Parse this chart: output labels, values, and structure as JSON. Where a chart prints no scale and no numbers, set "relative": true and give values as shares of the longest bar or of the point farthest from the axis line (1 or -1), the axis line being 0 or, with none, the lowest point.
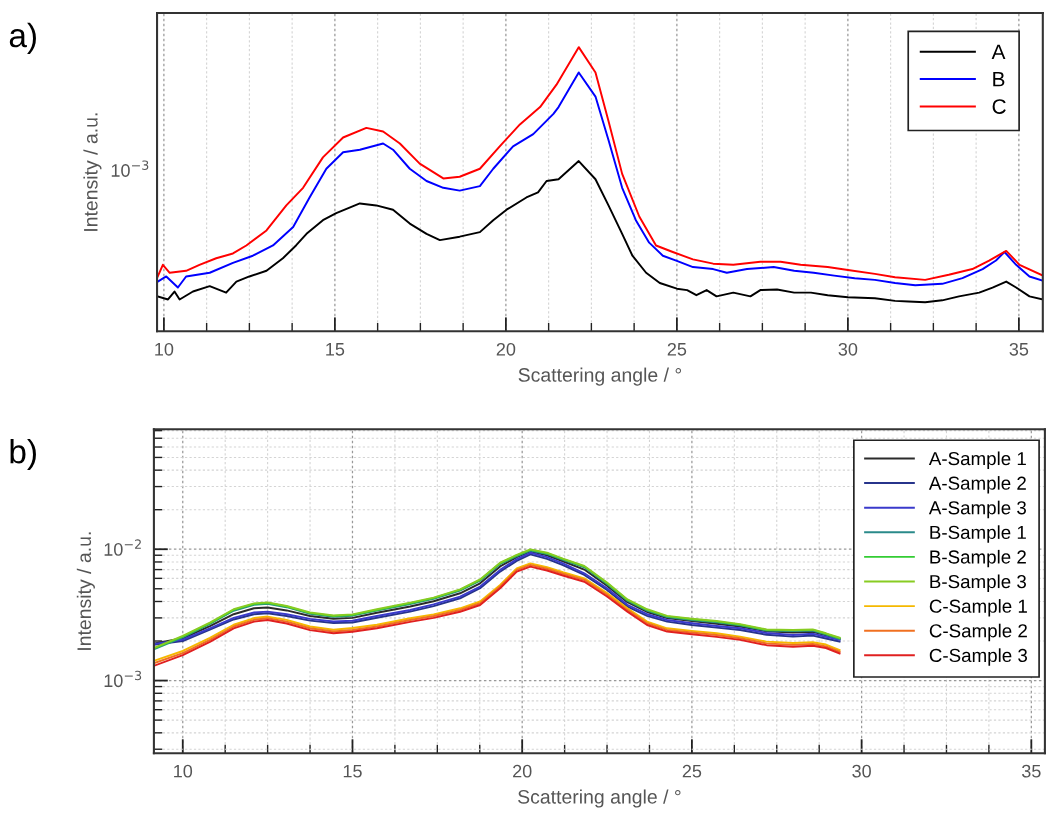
{
  "chart_data": [
    {
      "type": "line",
      "title": "a)",
      "xlabel": "Scattering angle / °",
      "ylabel": "Intensity / a.u.",
      "grid": "x",
      "legend": "top right",
      "line_style": "solid",
      "relative": true,
      "annotations": [
        "10$^{−3}$"
      ],
      "xlim": [
        9.8,
        35.7
      ],
      "xticks": [
        10,
        {
          "value": 11.25,
          "label": null
        },
        {
          "value": 12.5,
          "label": null
        },
        {
          "value": 13.75,
          "label": null
        },
        15,
        {
          "value": 16.25,
          "label": null
        },
        {
          "value": 17.5,
          "label": null
        },
        {
          "value": 18.75,
          "label": null
        },
        20,
        {
          "value": 21.25,
          "label": null
        },
        {
          "value": 22.5,
          "label": null
        },
        {
          "value": 23.75,
          "label": null
        },
        25,
        {
          "value": 26.25,
          "label": null
        },
        {
          "value": 27.5,
          "label": null
        },
        {
          "value": 28.75,
          "label": null
        },
        30,
        {
          "value": 31.25,
          "label": null
        },
        {
          "value": 32.5,
          "label": null
        },
        {
          "value": 33.75,
          "label": null
        },
        35
      ],
      "series": [
        {
          "name": "A",
          "color": "#000000",
          "x": [
            9.82,
            10.12,
            10.31,
            10.46,
            10.85,
            11.34,
            11.82,
            12.12,
            12.5,
            13.0,
            13.48,
            13.87,
            14.17,
            14.65,
            15.04,
            15.73,
            16.21,
            16.7,
            17.19,
            17.68,
            18.07,
            18.65,
            19.24,
            19.63,
            20.02,
            20.6,
            20.94,
            21.19,
            21.54,
            22.13,
            22.62,
            23.0,
            23.4,
            23.7,
            24.1,
            24.5,
            25.0,
            25.3,
            25.57,
            25.87,
            26.16,
            26.65,
            27.15,
            27.44,
            27.93,
            28.43,
            28.92,
            29.41,
            30.0,
            30.79,
            31.38,
            31.77,
            32.26,
            32.76,
            33.25,
            33.84,
            34.23,
            34.63,
            34.92,
            35.31,
            35.7
          ],
          "values": [
            0.123,
            0.112,
            0.14,
            0.112,
            0.14,
            0.159,
            0.136,
            0.175,
            0.193,
            0.213,
            0.257,
            0.303,
            0.343,
            0.391,
            0.416,
            0.45,
            0.443,
            0.428,
            0.379,
            0.343,
            0.321,
            0.333,
            0.349,
            0.391,
            0.428,
            0.471,
            0.489,
            0.529,
            0.535,
            0.599,
            0.535,
            0.443,
            0.343,
            0.266,
            0.206,
            0.17,
            0.15,
            0.145,
            0.127,
            0.145,
            0.123,
            0.136,
            0.123,
            0.145,
            0.147,
            0.136,
            0.136,
            0.127,
            0.12,
            0.116,
            0.107,
            0.105,
            0.102,
            0.109,
            0.123,
            0.136,
            0.154,
            0.175,
            0.154,
            0.123,
            0.112
          ]
        },
        {
          "name": "B",
          "color": "#0000ff",
          "x": [
            9.82,
            10.07,
            10.41,
            10.65,
            11.34,
            12.02,
            12.6,
            13.19,
            13.78,
            14.26,
            14.75,
            15.24,
            15.73,
            16.41,
            16.7,
            17.19,
            17.68,
            18.17,
            18.65,
            19.24,
            19.63,
            20.21,
            20.8,
            21.39,
            21.54,
            22.13,
            22.62,
            23.0,
            23.4,
            23.8,
            24.19,
            24.59,
            24.98,
            25.47,
            26.06,
            26.46,
            27.05,
            27.83,
            28.43,
            29.0,
            29.6,
            30.2,
            30.79,
            31.38,
            31.97,
            32.76,
            33.35,
            33.94,
            34.33,
            34.58,
            34.92,
            35.31,
            35.7
          ],
          "values": [
            0.175,
            0.193,
            0.154,
            0.193,
            0.206,
            0.241,
            0.266,
            0.302,
            0.367,
            0.471,
            0.572,
            0.63,
            0.639,
            0.661,
            0.639,
            0.572,
            0.529,
            0.505,
            0.495,
            0.511,
            0.572,
            0.651,
            0.694,
            0.765,
            0.789,
            0.911,
            0.826,
            0.673,
            0.505,
            0.391,
            0.312,
            0.266,
            0.249,
            0.226,
            0.219,
            0.206,
            0.219,
            0.226,
            0.213,
            0.206,
            0.196,
            0.187,
            0.181,
            0.17,
            0.162,
            0.167,
            0.187,
            0.219,
            0.249,
            0.279,
            0.234,
            0.193,
            0.178
          ]
        },
        {
          "name": "C",
          "color": "#ff0000",
          "x": [
            9.82,
            9.97,
            10.17,
            10.65,
            11.04,
            11.53,
            12.02,
            12.41,
            13.0,
            13.58,
            14.07,
            14.65,
            15.24,
            15.92,
            16.41,
            16.9,
            17.48,
            18.17,
            18.65,
            19.24,
            19.82,
            20.41,
            21.0,
            21.48,
            22.13,
            22.62,
            23.0,
            23.4,
            23.9,
            24.39,
            24.88,
            25.47,
            26.06,
            26.65,
            27.44,
            28.03,
            28.62,
            29.41,
            30.0,
            30.79,
            31.38,
            32.26,
            32.95,
            33.64,
            34.13,
            34.63,
            35.02,
            35.7
          ],
          "values": [
            0.193,
            0.234,
            0.206,
            0.213,
            0.234,
            0.257,
            0.274,
            0.302,
            0.355,
            0.443,
            0.505,
            0.612,
            0.682,
            0.716,
            0.703,
            0.661,
            0.59,
            0.538,
            0.544,
            0.572,
            0.651,
            0.728,
            0.789,
            0.868,
            1,
            0.911,
            0.74,
            0.554,
            0.404,
            0.302,
            0.279,
            0.253,
            0.238,
            0.234,
            0.245,
            0.245,
            0.234,
            0.226,
            0.216,
            0.202,
            0.19,
            0.181,
            0.199,
            0.219,
            0.249,
            0.283,
            0.234,
            0.196
          ]
        }
      ]
    },
    {
      "type": "line",
      "title": "b)",
      "xlabel": "Scattering angle / °",
      "ylabel": "Intensity / a.u.",
      "log": "y",
      "grid": true,
      "legend": "top right",
      "line_style": "solid",
      "xlim": [
        9.15,
        35.4
      ],
      "ylim": [
        0.00028,
        0.082
      ],
      "xticks": [
        10,
        {
          "value": 11.25,
          "label": null
        },
        {
          "value": 12.5,
          "label": null
        },
        {
          "value": 13.75,
          "label": null
        },
        15,
        {
          "value": 16.25,
          "label": null
        },
        {
          "value": 17.5,
          "label": null
        },
        {
          "value": 18.75,
          "label": null
        },
        20,
        {
          "value": 21.25,
          "label": null
        },
        {
          "value": 22.5,
          "label": null
        },
        {
          "value": 23.75,
          "label": null
        },
        25,
        {
          "value": 26.25,
          "label": null
        },
        {
          "value": 27.5,
          "label": null
        },
        {
          "value": 28.75,
          "label": null
        },
        30,
        {
          "value": 31.25,
          "label": null
        },
        {
          "value": 32.5,
          "label": null
        },
        {
          "value": 33.75,
          "label": null
        },
        35
      ],
      "yticks": [
        {
          "value": 0.0003,
          "label": null
        },
        {
          "value": 0.0004,
          "label": null
        },
        {
          "value": 0.0005,
          "label": null
        },
        {
          "value": 0.0006,
          "label": null
        },
        {
          "value": 0.0007,
          "label": null
        },
        {
          "value": 0.0008,
          "label": null
        },
        {
          "value": 0.0009,
          "label": null
        },
        {
          "value": 0.001,
          "label": "10$^{−3}$"
        },
        {
          "value": 0.002,
          "label": null
        },
        {
          "value": 0.003,
          "label": null
        },
        {
          "value": 0.004,
          "label": null
        },
        {
          "value": 0.005,
          "label": null
        },
        {
          "value": 0.006,
          "label": null
        },
        {
          "value": 0.007,
          "label": null
        },
        {
          "value": 0.008,
          "label": null
        },
        {
          "value": 0.009,
          "label": null
        },
        {
          "value": 0.01,
          "label": "10$^{−2}$"
        },
        {
          "value": 0.02,
          "label": null
        },
        {
          "value": 0.03,
          "label": null
        },
        {
          "value": 0.04,
          "label": null
        },
        {
          "value": 0.05,
          "label": null
        },
        {
          "value": 0.06,
          "label": null
        },
        {
          "value": 0.07,
          "label": null
        },
        {
          "value": 0.08,
          "label": null
        }
      ],
      "x": [
        9.17,
        10,
        10.8,
        11.5,
        12.1,
        12.5,
        13.06,
        13.75,
        14.44,
        15,
        15.72,
        16.7,
        17.39,
        18.17,
        18.76,
        19.35,
        19.84,
        20.24,
        20.73,
        21.2,
        21.83,
        22.5,
        23.1,
        23.68,
        24.27,
        25,
        25.73,
        26.42,
        27.2,
        27.98,
        28.56,
        28.95,
        29.35
      ],
      "series": [
        {
          "name": "A-Sample 1",
          "color": "#2b2b2b",
          "values": [
            0.00192,
            0.0021,
            0.0026,
            0.0032,
            0.00355,
            0.0036,
            0.00342,
            0.0031,
            0.00296,
            0.003,
            0.00328,
            0.00366,
            0.00402,
            0.00462,
            0.0055,
            0.0074,
            0.0087,
            0.00964,
            0.009,
            0.0081,
            0.007,
            0.00528,
            0.00395,
            0.00333,
            0.00299,
            0.00284,
            0.00271,
            0.00258,
            0.00237,
            0.00232,
            0.00235,
            0.00221,
            0.00208
          ]
        },
        {
          "name": "A-Sample 2",
          "color": "#27348b",
          "values": [
            0.00188,
            0.002,
            0.00244,
            0.00292,
            0.0032,
            0.00325,
            0.0031,
            0.00286,
            0.00274,
            0.00277,
            0.00301,
            0.00335,
            0.00369,
            0.00423,
            0.00505,
            0.00676,
            0.00816,
            0.00913,
            0.00845,
            0.00758,
            0.00637,
            0.0049,
            0.00366,
            0.00311,
            0.00281,
            0.00265,
            0.00253,
            0.00243,
            0.00223,
            0.00216,
            0.0022,
            0.00209,
            0.00198
          ]
        },
        {
          "name": "A-Sample 3",
          "color": "#3a3acb",
          "values": [
            0.0019,
            0.00205,
            0.0025,
            0.003,
            0.0033,
            0.00335,
            0.0032,
            0.00295,
            0.00282,
            0.00285,
            0.0031,
            0.00345,
            0.0038,
            0.00436,
            0.0052,
            0.00696,
            0.0084,
            0.0094,
            0.0087,
            0.0078,
            0.00656,
            0.00505,
            0.00377,
            0.0032,
            0.00289,
            0.00273,
            0.0026,
            0.0025,
            0.0023,
            0.00222,
            0.00227,
            0.00215,
            0.00204
          ]
        },
        {
          "name": "B-Sample 1",
          "color": "#2a8a8a",
          "values": [
            0.00174,
            0.00213,
            0.0027,
            0.0034,
            0.00378,
            0.00385,
            0.00362,
            0.00322,
            0.00306,
            0.00312,
            0.00341,
            0.00383,
            0.00419,
            0.00484,
            0.00576,
            0.00772,
            0.00885,
            0.00976,
            0.00921,
            0.0083,
            0.00729,
            0.00544,
            0.00406,
            0.00341,
            0.00304,
            0.00289,
            0.00278,
            0.00263,
            0.0024,
            0.00238,
            0.0024,
            0.00224,
            0.00207
          ]
        },
        {
          "name": "B-Sample 2",
          "color": "#33cc33",
          "values": [
            0.00176,
            0.00216,
            0.00273,
            0.00345,
            0.00383,
            0.0039,
            0.00366,
            0.00326,
            0.0031,
            0.00316,
            0.00345,
            0.00388,
            0.00424,
            0.0049,
            0.00583,
            0.00782,
            0.00896,
            0.00988,
            0.00932,
            0.0084,
            0.00738,
            0.00551,
            0.00411,
            0.00345,
            0.00308,
            0.00293,
            0.00281,
            0.00266,
            0.00243,
            0.00241,
            0.00243,
            0.00227,
            0.0021
          ]
        },
        {
          "name": "B-Sample 3",
          "color": "#88cc22",
          "values": [
            0.00178,
            0.00219,
            0.00276,
            0.00349,
            0.00387,
            0.00394,
            0.0037,
            0.0033,
            0.00313,
            0.00319,
            0.00349,
            0.00392,
            0.00428,
            0.00495,
            0.00589,
            0.0079,
            0.00905,
            0.00998,
            0.00941,
            0.00848,
            0.00745,
            0.00557,
            0.00415,
            0.00349,
            0.00311,
            0.00296,
            0.00284,
            0.00269,
            0.00245,
            0.00243,
            0.00245,
            0.00229,
            0.00212
          ]
        },
        {
          "name": "C-Sample 1",
          "color": "#f5b800",
          "values": [
            0.00142,
            0.00168,
            0.00211,
            0.00266,
            0.00299,
            0.00307,
            0.0029,
            0.00258,
            0.00244,
            0.00251,
            0.00266,
            0.00298,
            0.00319,
            0.00355,
            0.004,
            0.00535,
            0.00715,
            0.0078,
            0.0073,
            0.00668,
            0.006,
            0.00463,
            0.00355,
            0.00281,
            0.0025,
            0.00239,
            0.00229,
            0.00216,
            0.00198,
            0.00193,
            0.00196,
            0.00188,
            0.00171
          ]
        },
        {
          "name": "C-Sample 2",
          "color": "#f07020",
          "values": [
            0.00136,
            0.00162,
            0.00204,
            0.00258,
            0.0029,
            0.00298,
            0.00281,
            0.0025,
            0.00236,
            0.00243,
            0.00258,
            0.00289,
            0.0031,
            0.00345,
            0.00388,
            0.0052,
            0.00696,
            0.0076,
            0.0071,
            0.0065,
            0.00584,
            0.0045,
            0.00345,
            0.00273,
            0.00243,
            0.00232,
            0.00222,
            0.0021,
            0.00192,
            0.00187,
            0.0019,
            0.00182,
            0.00166
          ]
        },
        {
          "name": "C-Sample 3",
          "color": "#e02020",
          "values": [
            0.0013,
            0.00156,
            0.00197,
            0.0025,
            0.00281,
            0.00289,
            0.00272,
            0.00242,
            0.00229,
            0.00235,
            0.0025,
            0.0028,
            0.003,
            0.00334,
            0.00376,
            0.00504,
            0.00675,
            0.00737,
            0.00689,
            0.00631,
            0.00566,
            0.00437,
            0.00335,
            0.00265,
            0.00236,
            0.00225,
            0.00215,
            0.00204,
            0.00186,
            0.00181,
            0.00184,
            0.00177,
            0.00161
          ]
        }
      ]
    }
  ]
}
